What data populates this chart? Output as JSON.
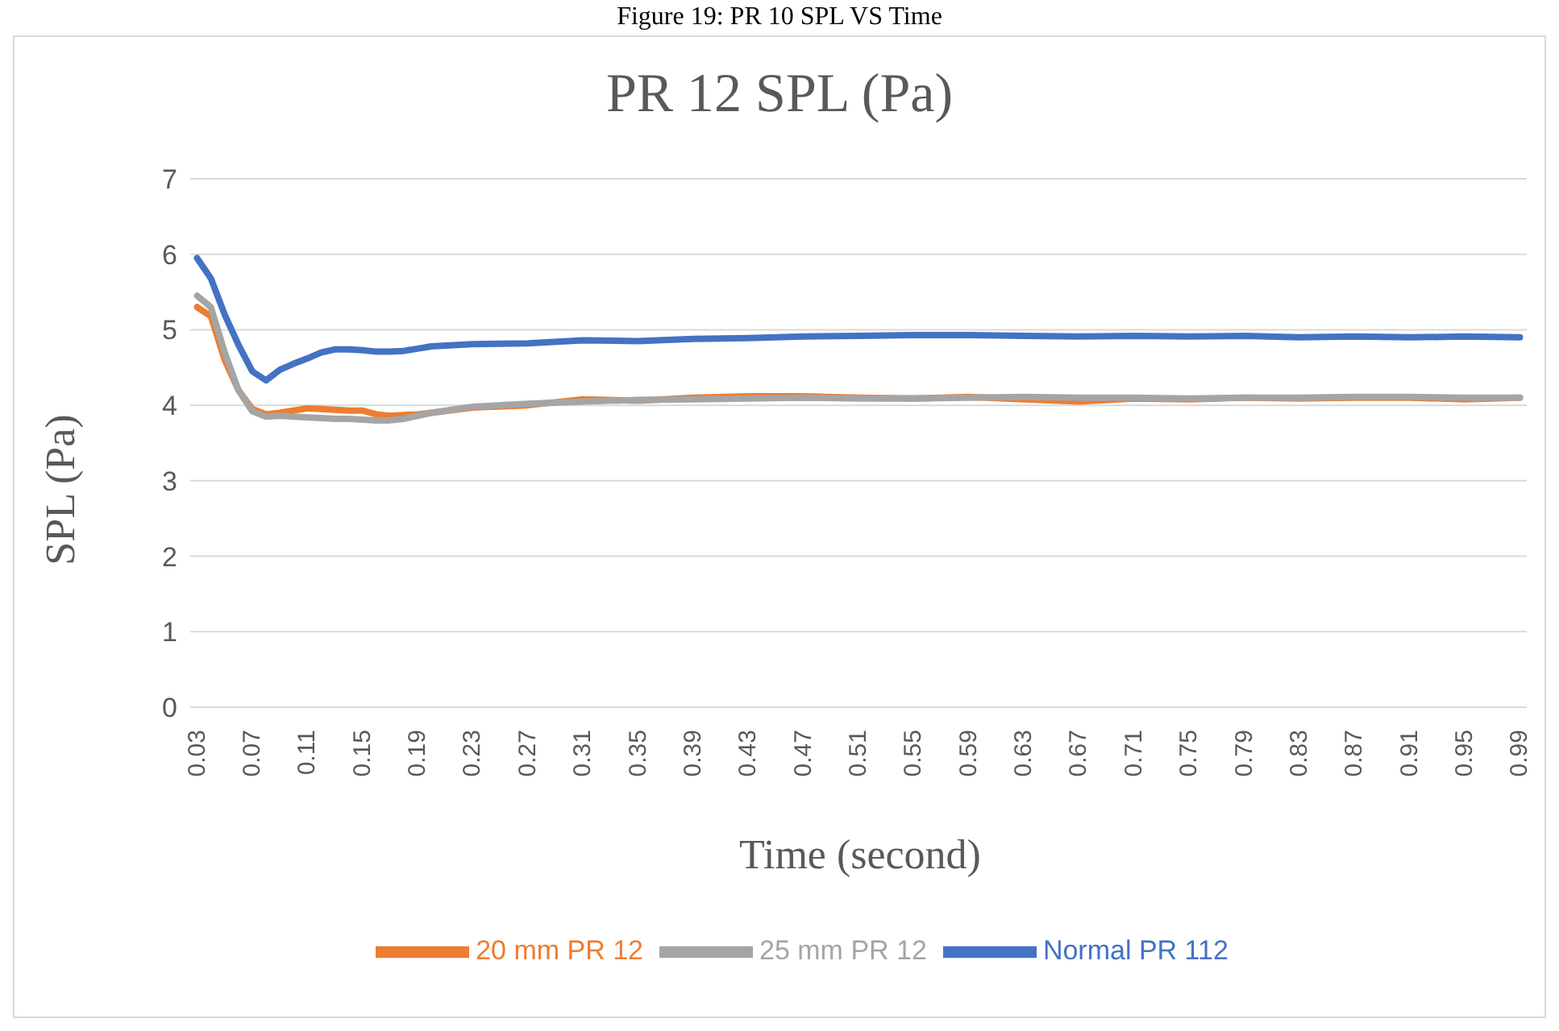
{
  "chart_data": {
    "type": "line",
    "title": "PR 12 SPL (Pa)",
    "xlabel": "Time (second)",
    "ylabel": "SPL (Pa)",
    "annotations": [
      "Figure 19: PR 10 SPL VS Time"
    ],
    "x": [
      0.03,
      0.04,
      0.05,
      0.06,
      0.07,
      0.08,
      0.09,
      0.1,
      0.11,
      0.12,
      0.13,
      0.14,
      0.15,
      0.16,
      0.17,
      0.18,
      0.19,
      0.2,
      0.23,
      0.27,
      0.31,
      0.35,
      0.39,
      0.43,
      0.47,
      0.51,
      0.55,
      0.59,
      0.63,
      0.67,
      0.71,
      0.75,
      0.79,
      0.83,
      0.87,
      0.91,
      0.95,
      0.99
    ],
    "series": [
      {
        "name": "Normal PR 112",
        "color": "#4472c4",
        "values": [
          5.95,
          5.68,
          5.2,
          4.8,
          4.45,
          4.33,
          4.47,
          4.55,
          4.62,
          4.7,
          4.74,
          4.74,
          4.73,
          4.71,
          4.71,
          4.72,
          4.75,
          4.78,
          4.81,
          4.82,
          4.86,
          4.85,
          4.88,
          4.89,
          4.91,
          4.92,
          4.93,
          4.93,
          4.92,
          4.91,
          4.92,
          4.91,
          4.92,
          4.9,
          4.91,
          4.9,
          4.91,
          4.9
        ]
      },
      {
        "name": "20 mm PR 12",
        "color": "#ed7d31",
        "values": [
          5.3,
          5.18,
          4.6,
          4.2,
          3.95,
          3.88,
          3.9,
          3.93,
          3.96,
          3.95,
          3.94,
          3.93,
          3.93,
          3.88,
          3.86,
          3.87,
          3.88,
          3.9,
          3.97,
          4.0,
          4.08,
          4.06,
          4.1,
          4.12,
          4.12,
          4.1,
          4.09,
          4.11,
          4.08,
          4.05,
          4.09,
          4.08,
          4.1,
          4.09,
          4.1,
          4.1,
          4.08,
          4.1
        ]
      },
      {
        "name": "25 mm PR 12",
        "color": "#a5a5a5",
        "values": [
          5.45,
          5.3,
          4.7,
          4.2,
          3.92,
          3.85,
          3.86,
          3.85,
          3.84,
          3.83,
          3.82,
          3.82,
          3.81,
          3.8,
          3.8,
          3.82,
          3.86,
          3.9,
          3.98,
          4.02,
          4.05,
          4.07,
          4.08,
          4.09,
          4.1,
          4.09,
          4.09,
          4.1,
          4.11,
          4.1,
          4.1,
          4.09,
          4.1,
          4.1,
          4.11,
          4.11,
          4.1,
          4.1
        ]
      }
    ],
    "xlim": [
      0.025,
      0.995
    ],
    "xticks": [
      {
        "value": 0.03,
        "label": "0.03"
      },
      {
        "value": 0.07,
        "label": "0.07"
      },
      {
        "value": 0.11,
        "label": "0.11"
      },
      {
        "value": 0.15,
        "label": "0.15"
      },
      {
        "value": 0.19,
        "label": "0.19"
      },
      {
        "value": 0.23,
        "label": "0.23"
      },
      {
        "value": 0.27,
        "label": "0.27"
      },
      {
        "value": 0.31,
        "label": "0.31"
      },
      {
        "value": 0.35,
        "label": "0.35"
      },
      {
        "value": 0.39,
        "label": "0.39"
      },
      {
        "value": 0.43,
        "label": "0.43"
      },
      {
        "value": 0.47,
        "label": "0.47"
      },
      {
        "value": 0.51,
        "label": "0.51"
      },
      {
        "value": 0.55,
        "label": "0.55"
      },
      {
        "value": 0.59,
        "label": "0.59"
      },
      {
        "value": 0.63,
        "label": "0.63"
      },
      {
        "value": 0.67,
        "label": "0.67"
      },
      {
        "value": 0.71,
        "label": "0.71"
      },
      {
        "value": 0.75,
        "label": "0.75"
      },
      {
        "value": 0.79,
        "label": "0.79"
      },
      {
        "value": 0.83,
        "label": "0.83"
      },
      {
        "value": 0.87,
        "label": "0.87"
      },
      {
        "value": 0.91,
        "label": "0.91"
      },
      {
        "value": 0.95,
        "label": "0.95"
      },
      {
        "value": 0.99,
        "label": "0.99"
      }
    ],
    "ylim": [
      0,
      7
    ],
    "yticks": [
      0,
      1,
      2,
      3,
      4,
      5,
      6,
      7
    ],
    "grid": "y",
    "legend": "bottom",
    "marker": "none",
    "line_style": "solid"
  }
}
